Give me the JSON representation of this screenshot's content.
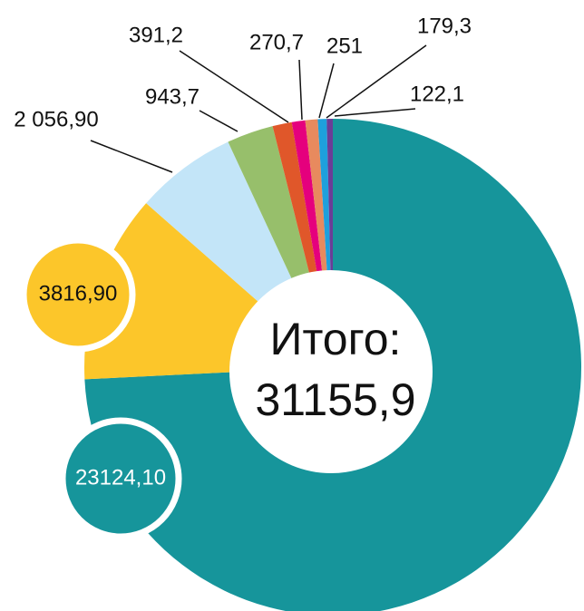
{
  "chart_data": {
    "type": "donut",
    "categories": [
      null,
      null,
      null,
      null,
      null,
      null,
      null,
      null,
      null
    ],
    "values": [
      23124.1,
      3816.9,
      2056.9,
      943.7,
      391.2,
      270.7,
      251,
      179.3,
      122.1
    ],
    "value_labels": [
      "23124,10",
      "3816,90",
      "2 056,90",
      "943,7",
      "391,2",
      "270,7",
      "251",
      "179,3",
      "122,1"
    ],
    "colors": [
      "#16959b",
      "#fcc62a",
      "#c3e5f8",
      "#97bf6b",
      "#e0572a",
      "#e5007d",
      "#e88a5e",
      "#1ea0dc",
      "#6a3d97"
    ],
    "center_title": "Итого:",
    "total": 31155.9,
    "total_label": "31155,9"
  }
}
